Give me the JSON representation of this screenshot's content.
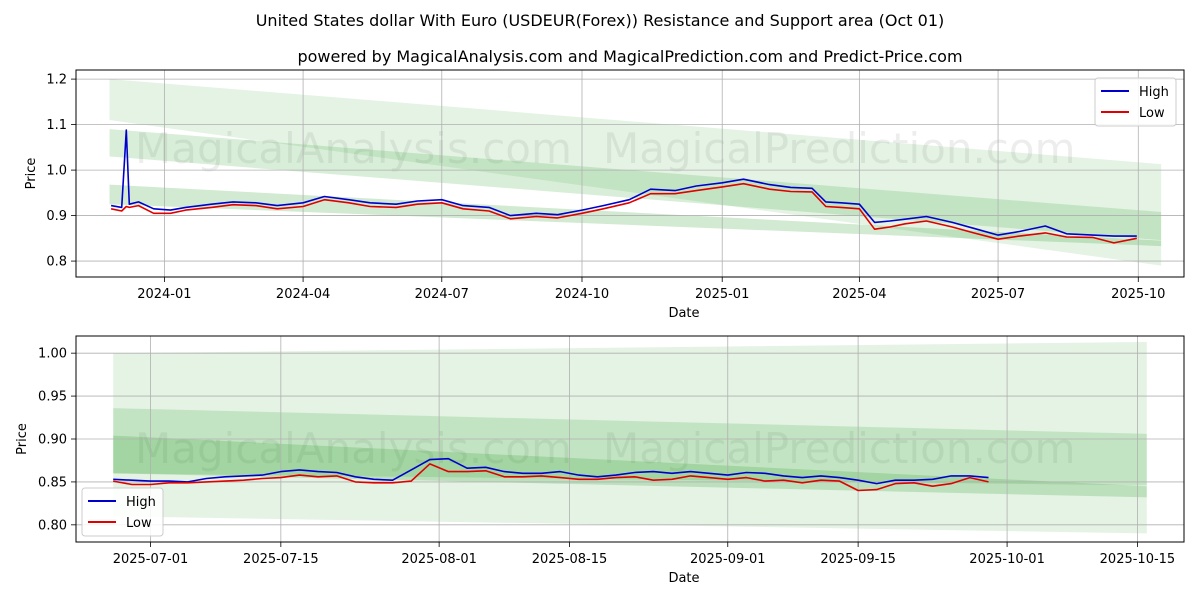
{
  "title": "United States dollar With Euro (USDEUR(Forex)) Resistance and Support area (Oct 01)",
  "subtitle": "powered by MagicalAnalysis.com and MagicalPrediction.com and Predict-Price.com",
  "watermarks": [
    "MagicalAnalysis.com",
    "MagicalPrediction.com"
  ],
  "colors": {
    "high": "#0000cc",
    "low": "#e00000",
    "band": "#2ca02c",
    "grid": "#b0b0b0"
  },
  "chart_data": [
    {
      "type": "line",
      "xlabel": "Date",
      "ylabel": "Price",
      "xlim": [
        "2023-11-04",
        "2025-10-31"
      ],
      "ylim": [
        0.765,
        1.22
      ],
      "xticks": [
        "2024-01",
        "2024-04",
        "2024-07",
        "2024-10",
        "2025-01",
        "2025-04",
        "2025-07",
        "2025-10"
      ],
      "yticks": [
        "0.8",
        "0.9",
        "1.0",
        "1.1",
        "1.2"
      ],
      "legend": {
        "position": "top-right",
        "entries": [
          "High",
          "Low"
        ]
      },
      "grid": true,
      "bands": [
        {
          "name": "outer-zone",
          "x": [
            "2023-11-26",
            "2025-10-16"
          ],
          "top": [
            1.2,
            1.013
          ],
          "bottom": [
            1.11,
            0.79
          ],
          "opacity": 0.13
        },
        {
          "name": "upper-zone",
          "x": [
            "2023-11-26",
            "2025-10-16"
          ],
          "top": [
            1.09,
            0.908
          ],
          "bottom": [
            1.03,
            0.846
          ],
          "opacity": 0.18
        },
        {
          "name": "lower-zone",
          "x": [
            "2023-11-26",
            "2025-10-16"
          ],
          "top": [
            0.968,
            0.845
          ],
          "bottom": [
            0.925,
            0.833
          ],
          "opacity": 0.22
        }
      ],
      "series": [
        {
          "name": "High",
          "x": [
            "2023-11-27",
            "2023-12-04",
            "2023-12-07",
            "2023-12-09",
            "2023-12-15",
            "2023-12-25",
            "2024-01-05",
            "2024-01-15",
            "2024-02-01",
            "2024-02-15",
            "2024-03-01",
            "2024-03-15",
            "2024-04-01",
            "2024-04-15",
            "2024-05-01",
            "2024-05-15",
            "2024-06-01",
            "2024-06-15",
            "2024-07-01",
            "2024-07-15",
            "2024-08-01",
            "2024-08-15",
            "2024-09-01",
            "2024-09-15",
            "2024-10-01",
            "2024-10-15",
            "2024-11-01",
            "2024-11-15",
            "2024-12-01",
            "2024-12-15",
            "2025-01-01",
            "2025-01-15",
            "2025-02-01",
            "2025-02-15",
            "2025-03-01",
            "2025-03-10",
            "2025-03-20",
            "2025-04-01",
            "2025-04-11",
            "2025-04-21",
            "2025-05-01",
            "2025-05-15",
            "2025-06-01",
            "2025-06-15",
            "2025-07-01",
            "2025-07-15",
            "2025-08-01",
            "2025-08-15",
            "2025-09-01",
            "2025-09-15",
            "2025-09-30"
          ],
          "values": [
            0.922,
            0.918,
            1.088,
            0.925,
            0.93,
            0.915,
            0.912,
            0.918,
            0.925,
            0.93,
            0.928,
            0.922,
            0.928,
            0.942,
            0.935,
            0.928,
            0.925,
            0.932,
            0.935,
            0.922,
            0.918,
            0.9,
            0.905,
            0.902,
            0.912,
            0.922,
            0.935,
            0.958,
            0.955,
            0.965,
            0.972,
            0.98,
            0.968,
            0.962,
            0.96,
            0.93,
            0.928,
            0.925,
            0.885,
            0.888,
            0.892,
            0.898,
            0.885,
            0.872,
            0.857,
            0.865,
            0.877,
            0.86,
            0.857,
            0.855,
            0.855
          ]
        },
        {
          "name": "Low",
          "x": [
            "2023-11-27",
            "2023-12-04",
            "2023-12-07",
            "2023-12-09",
            "2023-12-15",
            "2023-12-25",
            "2024-01-05",
            "2024-01-15",
            "2024-02-01",
            "2024-02-15",
            "2024-03-01",
            "2024-03-15",
            "2024-04-01",
            "2024-04-15",
            "2024-05-01",
            "2024-05-15",
            "2024-06-01",
            "2024-06-15",
            "2024-07-01",
            "2024-07-15",
            "2024-08-01",
            "2024-08-15",
            "2024-09-01",
            "2024-09-15",
            "2024-10-01",
            "2024-10-15",
            "2024-11-01",
            "2024-11-15",
            "2024-12-01",
            "2024-12-15",
            "2025-01-01",
            "2025-01-15",
            "2025-02-01",
            "2025-02-15",
            "2025-03-01",
            "2025-03-10",
            "2025-03-20",
            "2025-04-01",
            "2025-04-11",
            "2025-04-21",
            "2025-05-01",
            "2025-05-15",
            "2025-06-01",
            "2025-06-15",
            "2025-07-01",
            "2025-07-15",
            "2025-08-01",
            "2025-08-15",
            "2025-09-01",
            "2025-09-15",
            "2025-09-30"
          ],
          "values": [
            0.915,
            0.91,
            0.92,
            0.918,
            0.922,
            0.905,
            0.905,
            0.912,
            0.918,
            0.924,
            0.922,
            0.915,
            0.92,
            0.935,
            0.928,
            0.92,
            0.918,
            0.925,
            0.928,
            0.915,
            0.91,
            0.893,
            0.898,
            0.895,
            0.905,
            0.915,
            0.928,
            0.948,
            0.948,
            0.955,
            0.963,
            0.97,
            0.958,
            0.953,
            0.952,
            0.92,
            0.918,
            0.915,
            0.87,
            0.875,
            0.882,
            0.888,
            0.875,
            0.862,
            0.848,
            0.855,
            0.862,
            0.853,
            0.852,
            0.84,
            0.85
          ]
        }
      ]
    },
    {
      "type": "line",
      "xlabel": "Date",
      "ylabel": "Price",
      "xlim": [
        "2025-06-23",
        "2025-10-20"
      ],
      "ylim": [
        0.78,
        1.02
      ],
      "xticks": [
        "2025-07-01",
        "2025-07-15",
        "2025-08-01",
        "2025-08-15",
        "2025-09-01",
        "2025-09-15",
        "2025-10-01",
        "2025-10-15"
      ],
      "yticks": [
        "0.80",
        "0.85",
        "0.90",
        "0.95",
        "1.00"
      ],
      "legend": {
        "position": "bottom-left",
        "entries": [
          "High",
          "Low"
        ]
      },
      "grid": true,
      "bands": [
        {
          "name": "outer-zone",
          "x": [
            "2025-06-27",
            "2025-10-16"
          ],
          "top": [
            1.0,
            1.013
          ],
          "bottom": [
            0.81,
            0.79
          ],
          "opacity": 0.13
        },
        {
          "name": "upper-zone",
          "x": [
            "2025-06-27",
            "2025-10-16"
          ],
          "top": [
            0.936,
            0.906
          ],
          "bottom": [
            0.86,
            0.846
          ],
          "opacity": 0.18
        },
        {
          "name": "lower-zone",
          "x": [
            "2025-06-27",
            "2025-10-16"
          ],
          "top": [
            0.904,
            0.845
          ],
          "bottom": [
            0.86,
            0.832
          ],
          "opacity": 0.22
        }
      ],
      "series": [
        {
          "name": "High",
          "x": [
            "2025-06-27",
            "2025-06-29",
            "2025-07-01",
            "2025-07-03",
            "2025-07-05",
            "2025-07-07",
            "2025-07-09",
            "2025-07-11",
            "2025-07-13",
            "2025-07-15",
            "2025-07-17",
            "2025-07-19",
            "2025-07-21",
            "2025-07-23",
            "2025-07-25",
            "2025-07-27",
            "2025-07-29",
            "2025-07-31",
            "2025-08-02",
            "2025-08-04",
            "2025-08-06",
            "2025-08-08",
            "2025-08-10",
            "2025-08-12",
            "2025-08-14",
            "2025-08-16",
            "2025-08-18",
            "2025-08-20",
            "2025-08-22",
            "2025-08-24",
            "2025-08-26",
            "2025-08-28",
            "2025-08-30",
            "2025-09-01",
            "2025-09-03",
            "2025-09-05",
            "2025-09-07",
            "2025-09-09",
            "2025-09-11",
            "2025-09-13",
            "2025-09-15",
            "2025-09-17",
            "2025-09-19",
            "2025-09-21",
            "2025-09-23",
            "2025-09-25",
            "2025-09-27",
            "2025-09-29"
          ],
          "values": [
            0.853,
            0.852,
            0.851,
            0.851,
            0.85,
            0.854,
            0.856,
            0.857,
            0.858,
            0.862,
            0.864,
            0.862,
            0.861,
            0.856,
            0.853,
            0.852,
            0.864,
            0.876,
            0.877,
            0.866,
            0.867,
            0.862,
            0.86,
            0.86,
            0.862,
            0.858,
            0.856,
            0.858,
            0.861,
            0.862,
            0.86,
            0.862,
            0.86,
            0.858,
            0.861,
            0.86,
            0.857,
            0.855,
            0.857,
            0.855,
            0.852,
            0.848,
            0.852,
            0.852,
            0.853,
            0.857,
            0.857,
            0.855
          ]
        },
        {
          "name": "Low",
          "x": [
            "2025-06-27",
            "2025-06-29",
            "2025-07-01",
            "2025-07-03",
            "2025-07-05",
            "2025-07-07",
            "2025-07-09",
            "2025-07-11",
            "2025-07-13",
            "2025-07-15",
            "2025-07-17",
            "2025-07-19",
            "2025-07-21",
            "2025-07-23",
            "2025-07-25",
            "2025-07-27",
            "2025-07-29",
            "2025-07-31",
            "2025-08-02",
            "2025-08-04",
            "2025-08-06",
            "2025-08-08",
            "2025-08-10",
            "2025-08-12",
            "2025-08-14",
            "2025-08-16",
            "2025-08-18",
            "2025-08-20",
            "2025-08-22",
            "2025-08-24",
            "2025-08-26",
            "2025-08-28",
            "2025-08-30",
            "2025-09-01",
            "2025-09-03",
            "2025-09-05",
            "2025-09-07",
            "2025-09-09",
            "2025-09-11",
            "2025-09-13",
            "2025-09-15",
            "2025-09-17",
            "2025-09-19",
            "2025-09-21",
            "2025-09-23",
            "2025-09-25",
            "2025-09-27",
            "2025-09-29"
          ],
          "values": [
            0.851,
            0.847,
            0.847,
            0.849,
            0.849,
            0.85,
            0.851,
            0.852,
            0.854,
            0.855,
            0.858,
            0.856,
            0.857,
            0.85,
            0.849,
            0.849,
            0.851,
            0.871,
            0.862,
            0.862,
            0.863,
            0.856,
            0.856,
            0.857,
            0.855,
            0.853,
            0.853,
            0.855,
            0.856,
            0.852,
            0.853,
            0.857,
            0.855,
            0.853,
            0.855,
            0.851,
            0.852,
            0.849,
            0.852,
            0.851,
            0.84,
            0.841,
            0.848,
            0.849,
            0.845,
            0.848,
            0.855,
            0.85
          ]
        }
      ]
    }
  ]
}
